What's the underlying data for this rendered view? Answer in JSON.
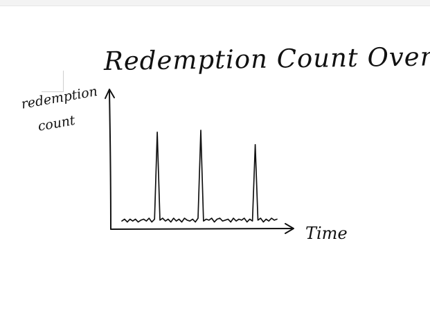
{
  "title": "Redemption Count Over time",
  "y_label": {
    "line1": "redemption",
    "line2": "count"
  },
  "x_label": "Time",
  "chart_data": {
    "type": "line",
    "title": "Redemption Count Over time",
    "xlabel": "Time",
    "ylabel": "redemption count",
    "grid": false,
    "legend": "none",
    "series": [
      {
        "values": [
          2,
          4,
          1,
          4,
          2,
          4,
          1,
          3,
          4,
          2,
          5,
          1,
          4,
          95,
          3,
          5,
          2,
          4,
          1,
          5,
          2,
          4,
          1,
          5,
          3,
          2,
          4,
          1,
          5,
          97,
          2,
          4,
          3,
          5,
          1,
          4,
          5,
          2,
          3,
          4,
          1,
          5,
          2,
          4,
          3,
          5,
          1,
          4,
          2,
          82,
          3,
          5,
          1,
          4,
          2,
          5,
          3,
          4
        ]
      }
    ]
  }
}
